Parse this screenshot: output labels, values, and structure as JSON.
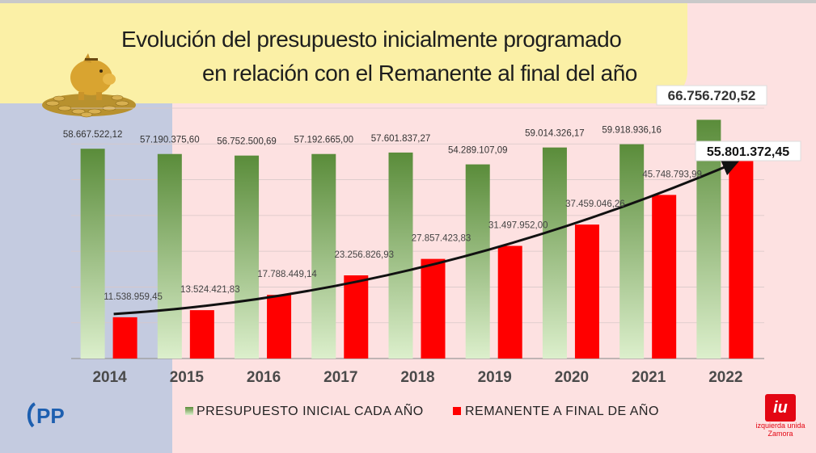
{
  "title": {
    "line1": "Evolución del presupuesto inicialmente programado",
    "line2": "en relación con el Remanente al final del año"
  },
  "chart_data": {
    "type": "bar",
    "categories": [
      "2014",
      "2015",
      "2016",
      "2017",
      "2018",
      "2019",
      "2020",
      "2021",
      "2022"
    ],
    "series": [
      {
        "name": "PRESUPUESTO INICIAL CADA AÑO",
        "values": [
          58667522.12,
          57190375.6,
          56752500.69,
          57192665.0,
          57601837.27,
          54289107.09,
          59014326.17,
          59918936.16,
          66756720.52
        ],
        "labels": [
          "58.667.522,12",
          "57.190.375,60",
          "56.752.500,69",
          "57.192.665,00",
          "57.601.837,27",
          "54.289.107,09",
          "59.014.326,17",
          "59.918.936,16",
          "66.756.720,52"
        ]
      },
      {
        "name": "REMANENTE A FINAL DE AÑO",
        "values": [
          11538959.45,
          13524421.83,
          17788449.14,
          23256826.93,
          27857423.83,
          31497952.0,
          37459046.26,
          45748793.99,
          55801372.45
        ],
        "labels": [
          "11.538.959,45",
          "13.524.421,83",
          "17.788.449,14",
          "23.256.826,93",
          "27.857.423,83",
          "31.497.952,00",
          "37.459.046,26",
          "45.748.793,99",
          "55.801.372,45"
        ]
      }
    ],
    "ylim": [
      0,
      70000000
    ],
    "grid": true,
    "legend_position": "bottom",
    "colors": {
      "green_top": "#5a8c3a",
      "green_bottom": "#d9ecc9",
      "red": "#ff0000"
    }
  },
  "logos": {
    "pp": "PP",
    "iu_mark": "iu",
    "iu_name": "izquierda unida",
    "iu_city": "Zamora"
  }
}
